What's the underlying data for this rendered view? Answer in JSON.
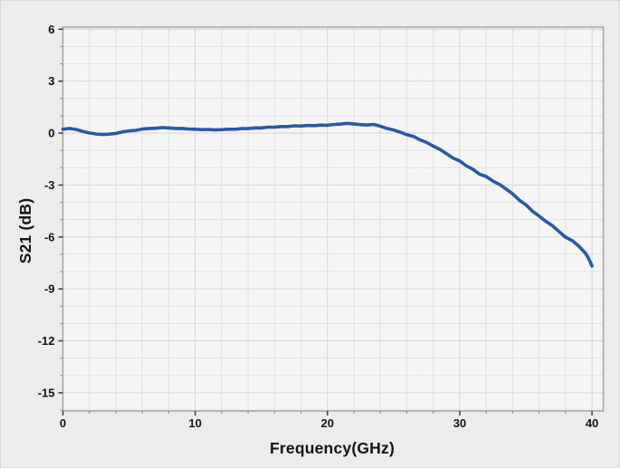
{
  "window": {
    "outer_background": "#ececec",
    "plot_background": "#f5f5f5"
  },
  "chart_data": {
    "type": "line",
    "title": "",
    "xlabel": "Frequency(GHz)",
    "ylabel": "S21 (dB)",
    "xlim": [
      0,
      40.85
    ],
    "ylim": [
      -16.05,
      6.12
    ],
    "x_major_ticks": [
      0,
      10,
      20,
      30,
      40
    ],
    "x_tick_labels": [
      "0",
      "10",
      "20",
      "30",
      "40"
    ],
    "x_minor_step": 2,
    "y_major_ticks": [
      6,
      3,
      0,
      -3,
      -6,
      -9,
      -12,
      -15
    ],
    "y_tick_labels": [
      "6",
      "3",
      "0",
      "-3",
      "-6",
      "-9",
      "-12",
      "-15"
    ],
    "y_minor_step": 1,
    "grid": true,
    "legend_position": "none",
    "series": [
      {
        "name": "S21",
        "color": "#2a59a5",
        "x": [
          0,
          0.5,
          1,
          1.5,
          2,
          2.5,
          3,
          3.5,
          4,
          4.5,
          5,
          5.5,
          6,
          6.5,
          7,
          7.5,
          8,
          8.5,
          9,
          9.5,
          10,
          10.5,
          11,
          11.5,
          12,
          12.5,
          13,
          13.5,
          14,
          14.5,
          15,
          15.5,
          16,
          16.5,
          17,
          17.5,
          18,
          18.5,
          19,
          19.5,
          20,
          20.5,
          21,
          21.5,
          22,
          22.5,
          23,
          23.5,
          24,
          24.5,
          25,
          25.5,
          26,
          26.5,
          27,
          27.5,
          28,
          28.5,
          29,
          29.5,
          30,
          30.5,
          31,
          31.5,
          32,
          32.5,
          33,
          33.5,
          34,
          34.5,
          35,
          35.5,
          36,
          36.5,
          37,
          37.5,
          38,
          38.5,
          39,
          39.5,
          39.75,
          40
        ],
        "y": [
          0.22,
          0.27,
          0.21,
          0.1,
          0.01,
          -0.05,
          -0.08,
          -0.06,
          -0.02,
          0.07,
          0.13,
          0.16,
          0.23,
          0.27,
          0.28,
          0.32,
          0.3,
          0.27,
          0.27,
          0.23,
          0.22,
          0.2,
          0.21,
          0.19,
          0.2,
          0.22,
          0.22,
          0.26,
          0.26,
          0.3,
          0.3,
          0.34,
          0.34,
          0.38,
          0.38,
          0.42,
          0.41,
          0.44,
          0.43,
          0.46,
          0.45,
          0.5,
          0.52,
          0.56,
          0.53,
          0.49,
          0.47,
          0.5,
          0.4,
          0.27,
          0.18,
          0.05,
          -0.09,
          -0.19,
          -0.39,
          -0.54,
          -0.75,
          -0.94,
          -1.19,
          -1.44,
          -1.61,
          -1.89,
          -2.09,
          -2.37,
          -2.51,
          -2.77,
          -2.96,
          -3.23,
          -3.51,
          -3.87,
          -4.14,
          -4.51,
          -4.79,
          -5.09,
          -5.34,
          -5.68,
          -6.01,
          -6.21,
          -6.53,
          -6.93,
          -7.25,
          -7.68
        ]
      }
    ]
  },
  "style": {
    "grid_minor_color": "#e2e2e2",
    "grid_major_color": "#d5d5d5",
    "frame_color": "#a8a8a8",
    "tick_major_color": "#3c3c3c",
    "tick_minor_color": "#8a8a8a",
    "label_color": "#141414",
    "trace_width": 3.6
  }
}
